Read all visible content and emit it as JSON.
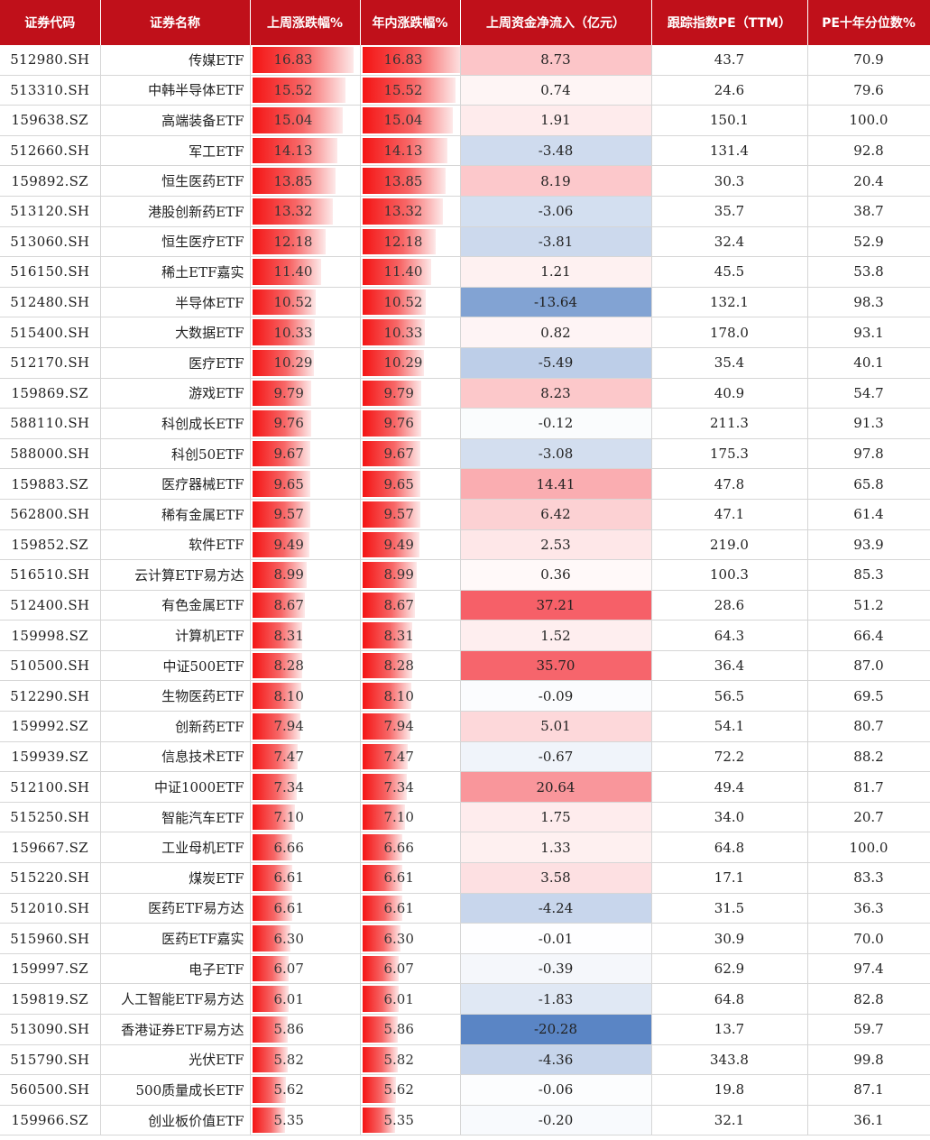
{
  "columns": [
    "证券代码",
    "证券名称",
    "上周涨跌幅%",
    "年内涨跌幅%",
    "上周资金净流入（亿元）",
    "跟踪指数PE（TTM）",
    "PE十年分位数%"
  ],
  "rows": [
    [
      "512980.SH",
      "传媒ETF",
      "16.83",
      "16.83",
      "8.73",
      "43.7",
      "70.9"
    ],
    [
      "513310.SH",
      "中韩半导体ETF",
      "15.52",
      "15.52",
      "0.74",
      "24.6",
      "79.6"
    ],
    [
      "159638.SZ",
      "高端装备ETF",
      "15.04",
      "15.04",
      "1.91",
      "150.1",
      "100.0"
    ],
    [
      "512660.SH",
      "军工ETF",
      "14.13",
      "14.13",
      "-3.48",
      "131.4",
      "92.8"
    ],
    [
      "159892.SZ",
      "恒生医药ETF",
      "13.85",
      "13.85",
      "8.19",
      "30.3",
      "20.4"
    ],
    [
      "513120.SH",
      "港股创新药ETF",
      "13.32",
      "13.32",
      "-3.06",
      "35.7",
      "38.7"
    ],
    [
      "513060.SH",
      "恒生医疗ETF",
      "12.18",
      "12.18",
      "-3.81",
      "32.4",
      "52.9"
    ],
    [
      "516150.SH",
      "稀土ETF嘉实",
      "11.40",
      "11.40",
      "1.21",
      "45.5",
      "53.8"
    ],
    [
      "512480.SH",
      "半导体ETF",
      "10.52",
      "10.52",
      "-13.64",
      "132.1",
      "98.3"
    ],
    [
      "515400.SH",
      "大数据ETF",
      "10.33",
      "10.33",
      "0.82",
      "178.0",
      "93.1"
    ],
    [
      "512170.SH",
      "医疗ETF",
      "10.29",
      "10.29",
      "-5.49",
      "35.4",
      "40.1"
    ],
    [
      "159869.SZ",
      "游戏ETF",
      "9.79",
      "9.79",
      "8.23",
      "40.9",
      "54.7"
    ],
    [
      "588110.SH",
      "科创成长ETF",
      "9.76",
      "9.76",
      "-0.12",
      "211.3",
      "91.3"
    ],
    [
      "588000.SH",
      "科创50ETF",
      "9.67",
      "9.67",
      "-3.08",
      "175.3",
      "97.8"
    ],
    [
      "159883.SZ",
      "医疗器械ETF",
      "9.65",
      "9.65",
      "14.41",
      "47.8",
      "65.8"
    ],
    [
      "562800.SH",
      "稀有金属ETF",
      "9.57",
      "9.57",
      "6.42",
      "47.1",
      "61.4"
    ],
    [
      "159852.SZ",
      "软件ETF",
      "9.49",
      "9.49",
      "2.53",
      "219.0",
      "93.9"
    ],
    [
      "516510.SH",
      "云计算ETF易方达",
      "8.99",
      "8.99",
      "0.36",
      "100.3",
      "85.3"
    ],
    [
      "512400.SH",
      "有色金属ETF",
      "8.67",
      "8.67",
      "37.21",
      "28.6",
      "51.2"
    ],
    [
      "159998.SZ",
      "计算机ETF",
      "8.31",
      "8.31",
      "1.52",
      "64.3",
      "66.4"
    ],
    [
      "510500.SH",
      "中证500ETF",
      "8.28",
      "8.28",
      "35.70",
      "36.4",
      "87.0"
    ],
    [
      "512290.SH",
      "生物医药ETF",
      "8.10",
      "8.10",
      "-0.09",
      "56.5",
      "69.5"
    ],
    [
      "159992.SZ",
      "创新药ETF",
      "7.94",
      "7.94",
      "5.01",
      "54.1",
      "80.7"
    ],
    [
      "159939.SZ",
      "信息技术ETF",
      "7.47",
      "7.47",
      "-0.67",
      "72.2",
      "88.2"
    ],
    [
      "512100.SH",
      "中证1000ETF",
      "7.34",
      "7.34",
      "20.64",
      "49.4",
      "81.7"
    ],
    [
      "515250.SH",
      "智能汽车ETF",
      "7.10",
      "7.10",
      "1.75",
      "34.0",
      "20.7"
    ],
    [
      "159667.SZ",
      "工业母机ETF",
      "6.66",
      "6.66",
      "1.33",
      "64.8",
      "100.0"
    ],
    [
      "515220.SH",
      "煤炭ETF",
      "6.61",
      "6.61",
      "3.58",
      "17.1",
      "83.3"
    ],
    [
      "512010.SH",
      "医药ETF易方达",
      "6.61",
      "6.61",
      "-4.24",
      "31.5",
      "36.3"
    ],
    [
      "515960.SH",
      "医药ETF嘉实",
      "6.30",
      "6.30",
      "-0.01",
      "30.9",
      "70.0"
    ],
    [
      "159997.SZ",
      "电子ETF",
      "6.07",
      "6.07",
      "-0.39",
      "62.9",
      "97.4"
    ],
    [
      "159819.SZ",
      "人工智能ETF易方达",
      "6.01",
      "6.01",
      "-1.83",
      "64.8",
      "82.8"
    ],
    [
      "513090.SH",
      "香港证券ETF易方达",
      "5.86",
      "5.86",
      "-20.28",
      "13.7",
      "59.7"
    ],
    [
      "515790.SH",
      "光伏ETF",
      "5.82",
      "5.82",
      "-4.36",
      "343.8",
      "99.8"
    ],
    [
      "560500.SH",
      "500质量成长ETF",
      "5.62",
      "5.62",
      "-0.06",
      "19.8",
      "87.1"
    ],
    [
      "159966.SZ",
      "创业板价值ETF",
      "5.35",
      "5.35",
      "-0.20",
      "32.1",
      "36.1"
    ]
  ],
  "colors": {
    "header_bg": "#c0101a",
    "bar_red": "#f41414",
    "inflow_red": "#f66068",
    "outflow_blue": "#5a85c5"
  }
}
